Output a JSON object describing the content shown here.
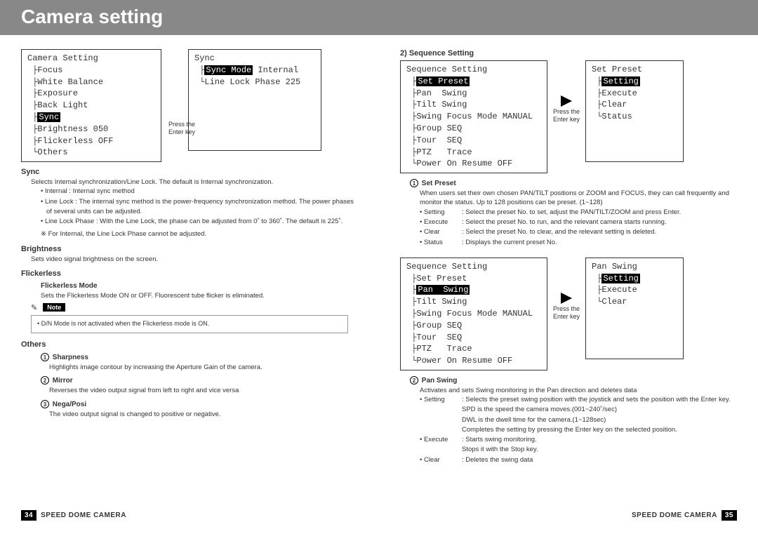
{
  "header_title": "Camera setting",
  "arrow_hint": "Press the\nEnter key",
  "left": {
    "camera_menu": {
      "title": "Camera Setting",
      "items": [
        {
          "label": "Focus"
        },
        {
          "label": "White Balance"
        },
        {
          "label": "Exposure"
        },
        {
          "label": "Back Light"
        },
        {
          "label": "Sync",
          "selected": true
        },
        {
          "label": "Brightness",
          "value": "050"
        },
        {
          "label": "Flickerless",
          "value": "OFF"
        },
        {
          "label": "Others"
        }
      ]
    },
    "sync_menu": {
      "title": "Sync",
      "items": [
        {
          "label": "Sync Mode",
          "value": "Internal",
          "selected": true
        },
        {
          "label": "Line Lock Phase",
          "value": "225"
        }
      ]
    },
    "sync_title": "Sync",
    "sync_desc": "Selects Internal synchronization/Line Lock. The default is Internal synchronization.",
    "sync_bullets": [
      "Internal : Internal sync method",
      "Line Lock : The internal sync method is the power-frequency synchronization method. The power phases of several units can be adjusted.",
      "Line Lock Phase : With the Line Lock, the phase can be adjusted from 0˚ to 360˚. The default is 225˚."
    ],
    "sync_note": "※ For Internal, the Line Lock Phase cannot be adjusted.",
    "brightness_title": "Brightness",
    "brightness_desc": "Sets video signal brightness on the screen.",
    "flickerless_title": "Flickerless",
    "flickerless_mode": "Flickerless Mode",
    "flickerless_desc": "Sets the Flickerless Mode ON or OFF. Fluorescent tube flicker is eliminated.",
    "note_label": "Note",
    "note_text": "D/N Mode is not activated when the Flickerless mode is ON.",
    "others_title": "Others",
    "sharpness_title": "Sharpness",
    "sharpness_desc": "Highlights image contour by increasing the Aperture Gain of the camera.",
    "mirror_title": "Mirror",
    "mirror_desc": "Reverses the video output signal from left to right and vice versa",
    "negaposi_title": "Nega/Posi",
    "negaposi_desc": "The video output signal is changed to positive or negative.",
    "footer_page": "34",
    "footer_text": "SPEED DOME CAMERA"
  },
  "right": {
    "section_title": "2) Sequence Setting",
    "seq_menu1": {
      "title": "Sequence Setting",
      "items": [
        {
          "label": "Set Preset",
          "selected": true
        },
        {
          "label": "Pan  Swing"
        },
        {
          "label": "Tilt Swing"
        },
        {
          "label": "Swing Focus Mode",
          "value": "MANUAL"
        },
        {
          "label": "Group SEQ"
        },
        {
          "label": "Tour  SEQ"
        },
        {
          "label": "PTZ   Trace"
        },
        {
          "label": "Power On Resume",
          "value": "OFF"
        }
      ]
    },
    "preset_menu": {
      "title": "Set Preset",
      "items": [
        {
          "label": "Setting",
          "selected": true
        },
        {
          "label": "Execute"
        },
        {
          "label": "Clear"
        },
        {
          "label": "Status"
        }
      ]
    },
    "setpreset_title": "Set Preset",
    "setpreset_desc": "When users set their own chosen PAN/TILT positions or ZOOM and FOCUS, they can call frequently and monitor the status. Up to 128 positions can be preset. (1~128)",
    "setpreset_defs": [
      {
        "term": "Setting",
        "desc": ": Select the preset No. to set, adjust the PAN/TILT/ZOOM and press Enter."
      },
      {
        "term": "Execute",
        "desc": ": Select the preset No. to run, and the relevant camera starts running."
      },
      {
        "term": "Clear",
        "desc": ": Select the preset No. to clear, and the relevant setting is deleted."
      },
      {
        "term": "Status",
        "desc": ": Displays the current preset No."
      }
    ],
    "seq_menu2": {
      "title": "Sequence Setting",
      "items": [
        {
          "label": "Set Preset"
        },
        {
          "label": "Pan  Swing",
          "selected": true
        },
        {
          "label": "Tilt Swing"
        },
        {
          "label": "Swing Focus Mode",
          "value": "MANUAL"
        },
        {
          "label": "Group SEQ"
        },
        {
          "label": "Tour  SEQ"
        },
        {
          "label": "PTZ   Trace"
        },
        {
          "label": "Power On Resume",
          "value": "OFF"
        }
      ]
    },
    "panswing_menu": {
      "title": "Pan Swing",
      "items": [
        {
          "label": "Setting",
          "selected": true
        },
        {
          "label": "Execute"
        },
        {
          "label": "Clear"
        }
      ]
    },
    "panswing_title": "Pan Swing",
    "panswing_desc": "Activates and sets Swing monitoring in the Pan direction and deletes data",
    "panswing_defs": [
      {
        "term": "Setting",
        "desc": ": Selects the preset swing position with the joystick and sets the position with the Enter key."
      },
      {
        "term": "",
        "desc": "  SPD is the speed the camera moves.(001~240˚/sec)"
      },
      {
        "term": "",
        "desc": "  DWL is the dwell time for the camera.(1~128sec)"
      },
      {
        "term": "",
        "desc": "  Completes the setting by pressing the Enter key on the selected position."
      },
      {
        "term": "Execute",
        "desc": ": Starts swing monitoring."
      },
      {
        "term": "",
        "desc": "  Stops it with the Stop key."
      },
      {
        "term": "Clear",
        "desc": ": Deletes the swing data"
      }
    ],
    "footer_page": "35",
    "footer_text": "SPEED DOME CAMERA"
  }
}
